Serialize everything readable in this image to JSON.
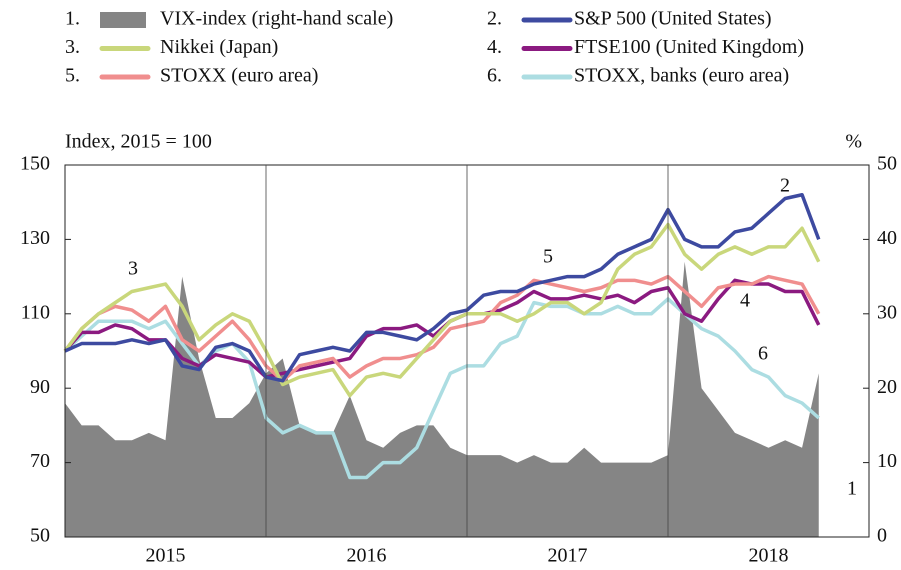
{
  "chart_data": {
    "type": "line",
    "y_label": "Index, 2015 = 100",
    "y2_label": "%",
    "x": [
      2015,
      2015.083,
      2015.167,
      2015.25,
      2015.333,
      2015.417,
      2015.5,
      2015.583,
      2015.667,
      2015.75,
      2015.833,
      2015.917,
      2016,
      2016.083,
      2016.167,
      2016.25,
      2016.333,
      2016.417,
      2016.5,
      2016.583,
      2016.667,
      2016.75,
      2016.833,
      2016.917,
      2017,
      2017.083,
      2017.167,
      2017.25,
      2017.333,
      2017.417,
      2017.5,
      2017.583,
      2017.667,
      2017.75,
      2017.833,
      2017.917,
      2018,
      2018.083,
      2018.167,
      2018.25,
      2018.333,
      2018.417,
      2018.5,
      2018.583,
      2018.667,
      2018.75
    ],
    "xlim": [
      2015,
      2019
    ],
    "xticks": [
      {
        "value": 2015.5,
        "label": "2015"
      },
      {
        "value": 2016.5,
        "label": "2016"
      },
      {
        "value": 2017.5,
        "label": "2017"
      },
      {
        "value": 2018.5,
        "label": "2018"
      }
    ],
    "ylim": [
      50,
      150
    ],
    "yticks": [
      50,
      70,
      90,
      110,
      130,
      150
    ],
    "y2lim": [
      0,
      50
    ],
    "y2ticks": [
      0,
      10,
      20,
      30,
      40,
      50
    ],
    "series": [
      {
        "name": "VIX-index (right-hand scale)",
        "legend_index": "1.",
        "label": "1",
        "color": "#858585",
        "axis": "y2",
        "kind": "area",
        "values": [
          18,
          15,
          15,
          13,
          13,
          14,
          13,
          35,
          24,
          16,
          16,
          18,
          22,
          24,
          15,
          14,
          14,
          19,
          13,
          12,
          14,
          15,
          15,
          12,
          11,
          11,
          11,
          10,
          11,
          10,
          10,
          12,
          10,
          10,
          10,
          10,
          11,
          37,
          20,
          17,
          14,
          13,
          12,
          13,
          12,
          22
        ]
      },
      {
        "name": "S&P 500 (United States)",
        "legend_index": "2.",
        "label": "2",
        "color": "#3d4aa0",
        "values": [
          100,
          102,
          102,
          102,
          103,
          102,
          103,
          96,
          95,
          101,
          102,
          100,
          93,
          92,
          99,
          100,
          101,
          100,
          105,
          105,
          104,
          103,
          106,
          110,
          111,
          115,
          116,
          116,
          118,
          119,
          120,
          120,
          122,
          126,
          128,
          130,
          138,
          130,
          128,
          128,
          132,
          133,
          137,
          141,
          142,
          130
        ]
      },
      {
        "name": "Nikkei (Japan)",
        "legend_index": "3.",
        "label": "3",
        "color": "#c9d77b",
        "values": [
          100,
          106,
          110,
          113,
          116,
          117,
          118,
          112,
          103,
          107,
          110,
          108,
          100,
          91,
          93,
          94,
          95,
          88,
          93,
          94,
          93,
          98,
          103,
          108,
          110,
          110,
          110,
          108,
          110,
          113,
          113,
          110,
          113,
          122,
          126,
          128,
          134,
          126,
          122,
          126,
          128,
          126,
          128,
          128,
          133,
          124
        ]
      },
      {
        "name": "FTSE100 (United Kingdom)",
        "legend_index": "4.",
        "label": "4",
        "color": "#8b1a80",
        "values": [
          100,
          105,
          105,
          107,
          106,
          103,
          103,
          98,
          96,
          99,
          98,
          97,
          93,
          94,
          95,
          96,
          97,
          98,
          104,
          106,
          106,
          107,
          104,
          108,
          110,
          110,
          111,
          113,
          116,
          114,
          114,
          115,
          114,
          115,
          113,
          116,
          117,
          110,
          108,
          114,
          119,
          118,
          118,
          116,
          116,
          107
        ]
      },
      {
        "name": "STOXX (euro area)",
        "legend_index": "5.",
        "label": "5",
        "color": "#f08e8e",
        "values": [
          100,
          106,
          110,
          112,
          111,
          108,
          112,
          103,
          100,
          104,
          108,
          103,
          96,
          92,
          96,
          97,
          98,
          93,
          96,
          98,
          98,
          99,
          101,
          106,
          107,
          108,
          113,
          115,
          119,
          118,
          117,
          116,
          117,
          119,
          119,
          118,
          120,
          116,
          112,
          117,
          118,
          118,
          120,
          119,
          118,
          110
        ]
      },
      {
        "name": "STOXX, banks (euro area)",
        "legend_index": "6.",
        "label": "6",
        "color": "#acdde2",
        "values": [
          100,
          104,
          108,
          108,
          108,
          106,
          108,
          102,
          96,
          100,
          102,
          97,
          82,
          78,
          80,
          78,
          78,
          66,
          66,
          70,
          70,
          74,
          84,
          94,
          96,
          96,
          102,
          104,
          113,
          112,
          112,
          110,
          110,
          112,
          110,
          110,
          114,
          110,
          106,
          104,
          100,
          95,
          93,
          88,
          86,
          82
        ]
      }
    ]
  }
}
